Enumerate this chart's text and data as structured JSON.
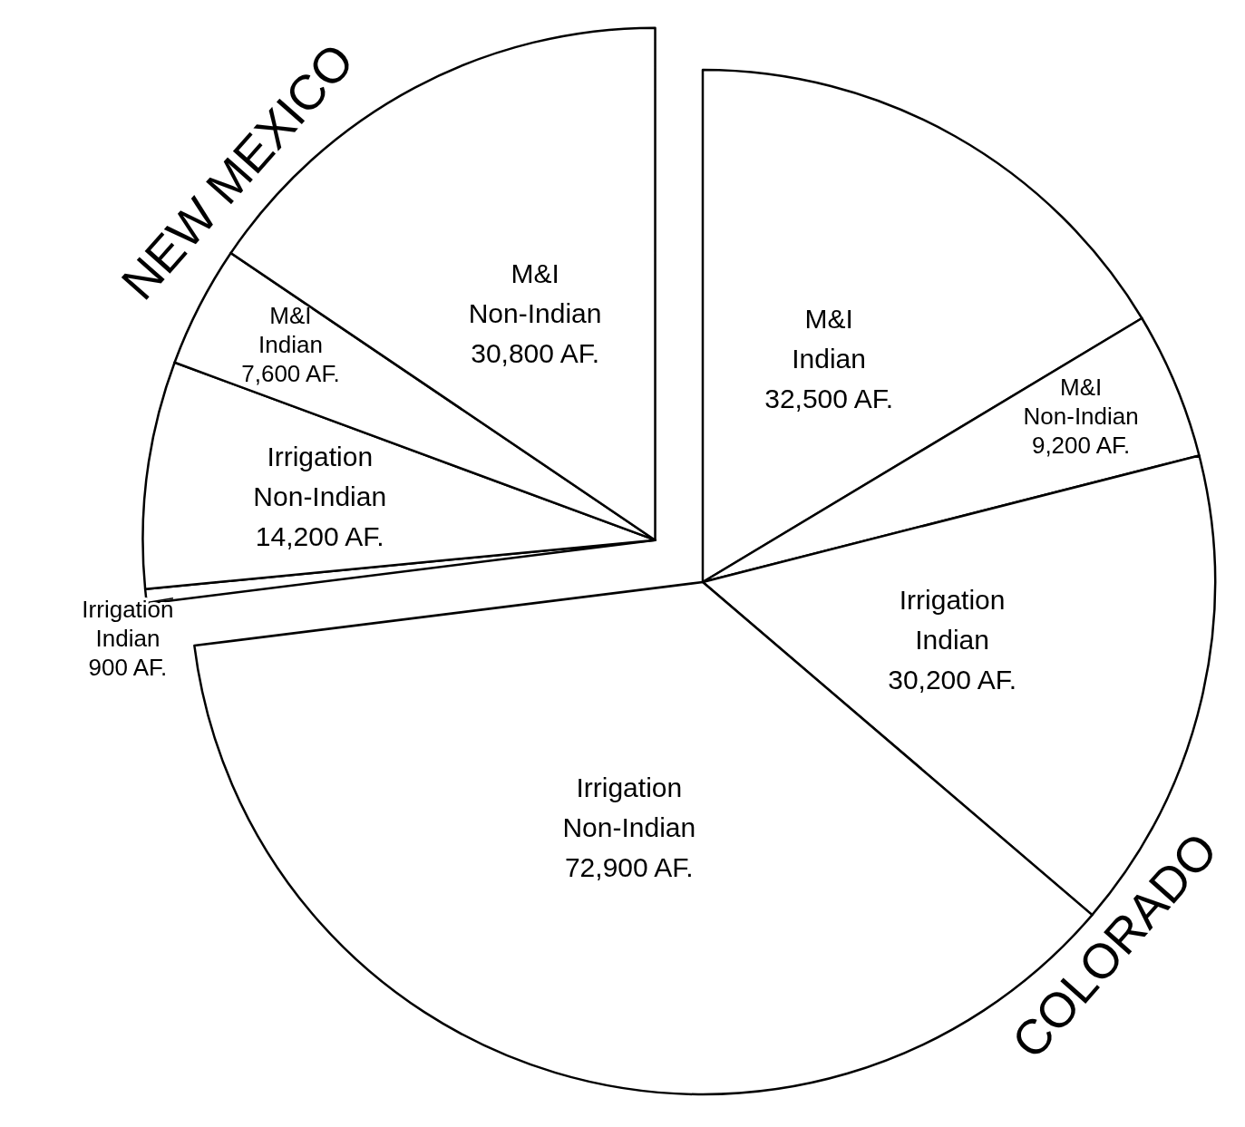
{
  "chart_data": {
    "type": "pie",
    "categories": [
      "M&I Indian",
      "M&I Non-Indian",
      "Irrigation Indian",
      "Irrigation Non-Indian",
      "Irrigation Indian",
      "Irrigation Non-Indian",
      "M&I Indian",
      "M&I Non-Indian"
    ],
    "values": [
      32500,
      9200,
      30200,
      72900,
      900,
      14200,
      7600,
      30800
    ],
    "value_labels": [
      "32,500 AF.",
      "9,200 AF.",
      "30,200 AF.",
      "72,900 AF.",
      "900 AF.",
      "14,200 AF.",
      "7,600 AF.",
      "30,800 AF."
    ],
    "colors": [
      "#ffffff",
      "#ffffff",
      "#ffffff",
      "#ffffff",
      "#ffffff",
      "#ffffff",
      "#ffffff",
      "#ffffff"
    ],
    "annotations": [
      "COLORADO",
      "NEW MEXICO"
    ]
  }
}
